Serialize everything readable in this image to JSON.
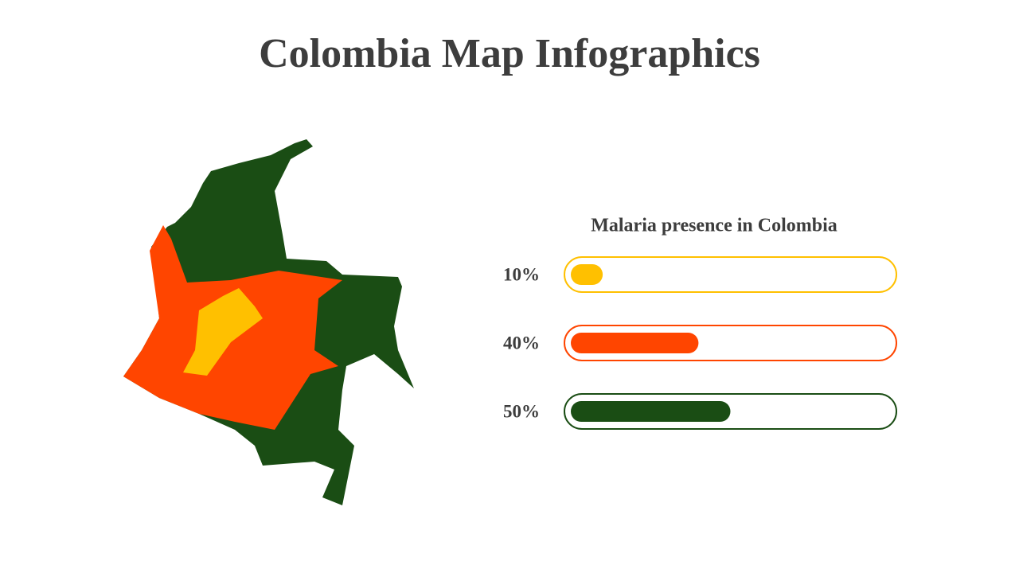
{
  "chart_data": {
    "type": "bar",
    "orientation": "horizontal",
    "title": "Colombia Map Infographics",
    "subtitle": "Malaria presence in Colombia",
    "values": [
      10,
      40,
      50
    ],
    "value_labels": [
      "10%",
      "40%",
      "50%"
    ],
    "colors": [
      "#ffc000",
      "#ff4500",
      "#1a4d14"
    ],
    "xlim": [
      0,
      100
    ]
  }
}
